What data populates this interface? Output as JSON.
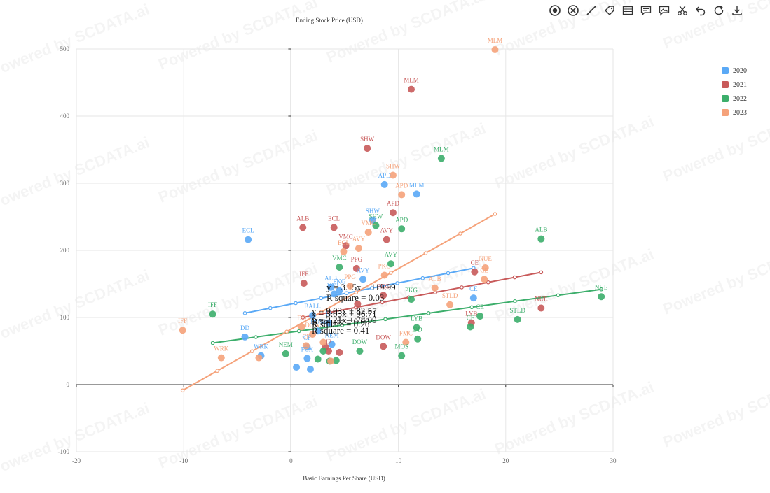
{
  "colors": {
    "2020": "#5aa9f6",
    "2021": "#c85a5a",
    "2022": "#3cae6b",
    "2023": "#f5a27a",
    "axis": "#333333",
    "grid": "#e6e6e6",
    "tick": "#666666"
  },
  "watermark": "Powered by SCDATA.ai",
  "toolbar": {
    "icons": [
      "focus-icon",
      "clear-icon",
      "draw-line-icon",
      "tag-icon",
      "table-icon",
      "comment-icon",
      "comment-image-icon",
      "cut-icon",
      "undo-icon",
      "refresh-icon",
      "download-icon"
    ]
  },
  "legend": {
    "placement": "right",
    "items": [
      {
        "label": "2020",
        "color": "#5aa9f6"
      },
      {
        "label": "2021",
        "color": "#c85a5a"
      },
      {
        "label": "2022",
        "color": "#3cae6b"
      },
      {
        "label": "2023",
        "color": "#f5a27a"
      }
    ]
  },
  "chart_data": {
    "type": "scatter",
    "xlabel": "Basic Earnings Per Share (USD)",
    "ylabel": "Ending Stock Price (USD)",
    "xlim": [
      -20,
      30
    ],
    "ylim": [
      -100,
      500
    ],
    "xticks": [
      -20,
      -10,
      0,
      10,
      20,
      30
    ],
    "yticks": [
      -100,
      0,
      100,
      200,
      300,
      400,
      500
    ],
    "grid": true,
    "legend_placement": "right",
    "series": [
      {
        "name": "2020",
        "points": [
          {
            "x": -4,
            "y": 216,
            "label": "ECL"
          },
          {
            "x": 8.7,
            "y": 298,
            "label": "APD"
          },
          {
            "x": 11.7,
            "y": 284,
            "label": "MLM"
          },
          {
            "x": 7.6,
            "y": 245,
            "label": "SHW"
          },
          {
            "x": 6.7,
            "y": 157,
            "label": "AVY"
          },
          {
            "x": 3.7,
            "y": 145,
            "label": "ALB"
          },
          {
            "x": 4.5,
            "y": 140,
            "label": "PKG"
          },
          {
            "x": 4,
            "y": 135,
            "label": "VMC"
          },
          {
            "x": 17,
            "y": 129,
            "label": "CE"
          },
          {
            "x": 2,
            "y": 103,
            "label": "BALL"
          },
          {
            "x": -4.3,
            "y": 71,
            "label": "DD"
          },
          {
            "x": -2.8,
            "y": 43,
            "label": "WRK"
          },
          {
            "x": 1.5,
            "y": 56,
            "label": "CF"
          },
          {
            "x": 1.5,
            "y": 39,
            "label": "FCX"
          },
          {
            "x": 0.5,
            "y": 26,
            "label": ""
          },
          {
            "x": 1.8,
            "y": 23,
            "label": ""
          },
          {
            "x": 3.5,
            "y": 92,
            "label": "IP"
          },
          {
            "x": 3.8,
            "y": 60,
            "label": "NEM"
          },
          {
            "x": 2.5,
            "y": 80,
            "label": "DOW"
          }
        ],
        "trend": {
          "equation": "y = 3.15x + 119.99",
          "r2": "R square = 0.03",
          "x": [
            -4.3,
            17
          ]
        }
      },
      {
        "name": "2021",
        "points": [
          {
            "x": 11.2,
            "y": 440,
            "label": "MLM"
          },
          {
            "x": 7.1,
            "y": 352,
            "label": "SHW"
          },
          {
            "x": 9.5,
            "y": 256,
            "label": "APD"
          },
          {
            "x": 1.1,
            "y": 234,
            "label": "ALB"
          },
          {
            "x": 4,
            "y": 234,
            "label": "ECL"
          },
          {
            "x": 8.9,
            "y": 216,
            "label": "AVY"
          },
          {
            "x": 5.1,
            "y": 207,
            "label": "VMC"
          },
          {
            "x": 6.1,
            "y": 173,
            "label": "PPG"
          },
          {
            "x": 1.2,
            "y": 151,
            "label": "IFF"
          },
          {
            "x": 17.1,
            "y": 168,
            "label": "CE"
          },
          {
            "x": 8.6,
            "y": 133,
            "label": "PKG"
          },
          {
            "x": 23.3,
            "y": 114,
            "label": "NUE"
          },
          {
            "x": 16.8,
            "y": 92,
            "label": "LYB"
          },
          {
            "x": 8.6,
            "y": 57,
            "label": "DOW"
          },
          {
            "x": 3.5,
            "y": 50,
            "label": "IP"
          },
          {
            "x": 4.5,
            "y": 48,
            "label": ""
          },
          {
            "x": 6.2,
            "y": 120,
            "label": ""
          },
          {
            "x": 3.2,
            "y": 56,
            "label": ""
          }
        ],
        "trend": {
          "equation": "y = 3.03x + 96.71",
          "r2": "R square = 0.26",
          "x": [
            1.1,
            23.3
          ]
        }
      },
      {
        "name": "2022",
        "points": [
          {
            "x": 14,
            "y": 337,
            "label": "MLM"
          },
          {
            "x": 10.3,
            "y": 232,
            "label": "APD"
          },
          {
            "x": 7.9,
            "y": 237,
            "label": "SHW"
          },
          {
            "x": 23.3,
            "y": 217,
            "label": "ALB"
          },
          {
            "x": 9.3,
            "y": 180,
            "label": "AVY"
          },
          {
            "x": 4.5,
            "y": 175,
            "label": "VMC"
          },
          {
            "x": 28.9,
            "y": 131,
            "label": "NUE"
          },
          {
            "x": 11.2,
            "y": 127,
            "label": "PKG"
          },
          {
            "x": -7.3,
            "y": 105,
            "label": "IFF"
          },
          {
            "x": 17.6,
            "y": 102,
            "label": "CE"
          },
          {
            "x": 21.1,
            "y": 97,
            "label": "STLD"
          },
          {
            "x": 11.7,
            "y": 85,
            "label": "LYB"
          },
          {
            "x": 16.7,
            "y": 86,
            "label": "CF"
          },
          {
            "x": 11.8,
            "y": 68,
            "label": "DD"
          },
          {
            "x": 6.4,
            "y": 50,
            "label": "DOW"
          },
          {
            "x": 10.3,
            "y": 43,
            "label": "MOS"
          },
          {
            "x": -0.5,
            "y": 46,
            "label": "NEM"
          },
          {
            "x": 3.6,
            "y": 35,
            "label": ""
          },
          {
            "x": 2.5,
            "y": 38,
            "label": ""
          },
          {
            "x": 4.2,
            "y": 36,
            "label": ""
          },
          {
            "x": 3,
            "y": 50,
            "label": ""
          }
        ],
        "trend": {
          "equation": "y = 2.21x + 78.09",
          "r2": "R square = 0.41",
          "x": [
            -7.3,
            28.9
          ]
        }
      },
      {
        "name": "2023",
        "points": [
          {
            "x": 19,
            "y": 499,
            "label": "MLM"
          },
          {
            "x": 9.5,
            "y": 312,
            "label": "SHW"
          },
          {
            "x": 10.3,
            "y": 283,
            "label": "APD"
          },
          {
            "x": 7.2,
            "y": 227,
            "label": "VMC"
          },
          {
            "x": 6.3,
            "y": 203,
            "label": "AVY"
          },
          {
            "x": 4.9,
            "y": 198,
            "label": "ECL"
          },
          {
            "x": 18.1,
            "y": 174,
            "label": "NUE"
          },
          {
            "x": 18,
            "y": 157,
            "label": "CE"
          },
          {
            "x": 13.4,
            "y": 144,
            "label": "ALB"
          },
          {
            "x": 14.8,
            "y": 119,
            "label": "STLD"
          },
          {
            "x": 8.7,
            "y": 163,
            "label": "PKG"
          },
          {
            "x": 5.5,
            "y": 147,
            "label": "PPG"
          },
          {
            "x": -10.1,
            "y": 81,
            "label": "IFF"
          },
          {
            "x": -6.5,
            "y": 40,
            "label": "WRK"
          },
          {
            "x": -3,
            "y": 40,
            "label": ""
          },
          {
            "x": 10.7,
            "y": 63,
            "label": "FMC"
          },
          {
            "x": 1,
            "y": 86,
            "label": "DD"
          },
          {
            "x": 3.7,
            "y": 35,
            "label": ""
          },
          {
            "x": 1.4,
            "y": 58,
            "label": "CF"
          },
          {
            "x": 3,
            "y": 63,
            "label": ""
          },
          {
            "x": 2,
            "y": 75,
            "label": "DOW"
          }
        ],
        "trend": {
          "equation": "y = 9.03x + 82.57",
          "r2": "R square = 0.60",
          "x": [
            -10.1,
            19
          ]
        }
      }
    ]
  }
}
